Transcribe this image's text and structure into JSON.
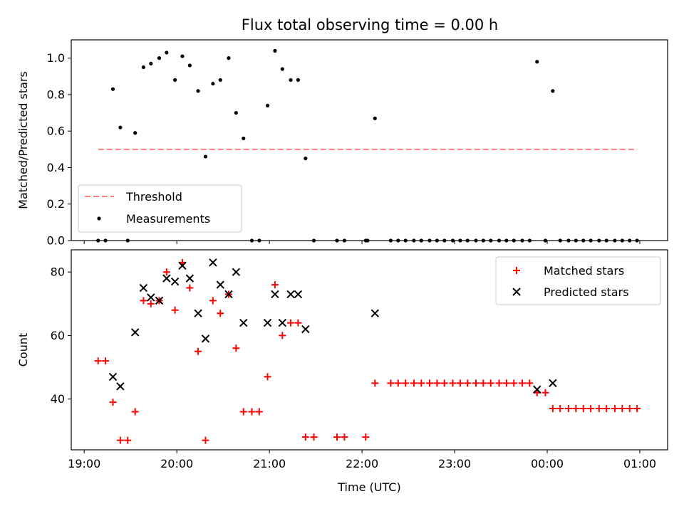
{
  "chart_data": [
    {
      "type": "scatter",
      "title": "Flux total observing time = 0.00 h",
      "xlabel": "",
      "ylabel": "Matched/Predicted stars",
      "ylim": [
        0.0,
        1.1
      ],
      "xlim_hours": [
        18.86,
        25.3
      ],
      "yticks": [
        {
          "v": 0.0,
          "label": "0.0"
        },
        {
          "v": 0.2,
          "label": "0.2"
        },
        {
          "v": 0.4,
          "label": "0.4"
        },
        {
          "v": 0.6,
          "label": "0.6"
        },
        {
          "v": 0.8,
          "label": "0.8"
        },
        {
          "v": 1.0,
          "label": "1.0"
        }
      ],
      "xticks": [
        {
          "v": 19,
          "label": ""
        },
        {
          "v": 20,
          "label": ""
        },
        {
          "v": 21,
          "label": ""
        },
        {
          "v": 22,
          "label": ""
        },
        {
          "v": 23,
          "label": ""
        },
        {
          "v": 24,
          "label": ""
        },
        {
          "v": 25,
          "label": ""
        }
      ],
      "legend": {
        "position": "lower-left",
        "entries": [
          "Threshold",
          "Measurements"
        ]
      },
      "threshold": {
        "name": "Threshold",
        "value": 0.5,
        "x_start": 19.15,
        "x_end": 24.97,
        "color": "#ff7f7f"
      },
      "series": [
        {
          "name": "Measurements",
          "color": "#000000",
          "points": [
            [
              19.15,
              0.0
            ],
            [
              19.23,
              0.0
            ],
            [
              19.31,
              0.83
            ],
            [
              19.39,
              0.62
            ],
            [
              19.47,
              0.0
            ],
            [
              19.55,
              0.59
            ],
            [
              19.64,
              0.95
            ],
            [
              19.72,
              0.97
            ],
            [
              19.81,
              1.0
            ],
            [
              19.89,
              1.03
            ],
            [
              19.98,
              0.88
            ],
            [
              20.06,
              1.01
            ],
            [
              20.14,
              0.96
            ],
            [
              20.23,
              0.82
            ],
            [
              20.31,
              0.46
            ],
            [
              20.39,
              0.86
            ],
            [
              20.47,
              0.88
            ],
            [
              20.56,
              1.0
            ],
            [
              20.64,
              0.7
            ],
            [
              20.72,
              0.56
            ],
            [
              20.81,
              0.0
            ],
            [
              20.89,
              0.0
            ],
            [
              20.98,
              0.74
            ],
            [
              21.06,
              1.04
            ],
            [
              21.14,
              0.94
            ],
            [
              21.23,
              0.88
            ],
            [
              21.31,
              0.88
            ],
            [
              21.39,
              0.45
            ],
            [
              21.48,
              0.0
            ],
            [
              21.73,
              0.0
            ],
            [
              21.81,
              0.0
            ],
            [
              22.04,
              0.0
            ],
            [
              22.06,
              0.0
            ],
            [
              22.14,
              0.67
            ],
            [
              22.31,
              0.0
            ],
            [
              22.39,
              0.0
            ],
            [
              22.47,
              0.0
            ],
            [
              22.56,
              0.0
            ],
            [
              22.64,
              0.0
            ],
            [
              22.73,
              0.0
            ],
            [
              22.81,
              0.0
            ],
            [
              22.89,
              0.0
            ],
            [
              22.98,
              0.0
            ],
            [
              23.06,
              0.0
            ],
            [
              23.14,
              0.0
            ],
            [
              23.23,
              0.0
            ],
            [
              23.31,
              0.0
            ],
            [
              23.39,
              0.0
            ],
            [
              23.48,
              0.0
            ],
            [
              23.56,
              0.0
            ],
            [
              23.64,
              0.0
            ],
            [
              23.73,
              0.0
            ],
            [
              23.81,
              0.0
            ],
            [
              23.89,
              0.98
            ],
            [
              23.98,
              0.0
            ],
            [
              24.06,
              0.82
            ],
            [
              24.14,
              0.0
            ],
            [
              24.23,
              0.0
            ],
            [
              24.31,
              0.0
            ],
            [
              24.39,
              0.0
            ],
            [
              24.47,
              0.0
            ],
            [
              24.56,
              0.0
            ],
            [
              24.64,
              0.0
            ],
            [
              24.73,
              0.0
            ],
            [
              24.81,
              0.0
            ],
            [
              24.89,
              0.0
            ],
            [
              24.97,
              0.0
            ]
          ]
        }
      ]
    },
    {
      "type": "scatter",
      "title": "",
      "xlabel": "Time (UTC)",
      "ylabel": "Count",
      "ylim": [
        24,
        87
      ],
      "xlim_hours": [
        18.86,
        25.3
      ],
      "yticks": [
        {
          "v": 40,
          "label": "40"
        },
        {
          "v": 60,
          "label": "60"
        },
        {
          "v": 80,
          "label": "80"
        }
      ],
      "xticks": [
        {
          "v": 19,
          "label": "19:00"
        },
        {
          "v": 20,
          "label": "20:00"
        },
        {
          "v": 21,
          "label": "21:00"
        },
        {
          "v": 22,
          "label": "22:00"
        },
        {
          "v": 23,
          "label": "23:00"
        },
        {
          "v": 24,
          "label": "00:00"
        },
        {
          "v": 25,
          "label": "01:00"
        }
      ],
      "legend": {
        "position": "upper-right",
        "entries": [
          "Matched stars",
          "Predicted stars"
        ]
      },
      "series": [
        {
          "name": "Matched stars",
          "marker": "plus",
          "color": "#ff0000",
          "points": [
            [
              19.15,
              52
            ],
            [
              19.23,
              52
            ],
            [
              19.31,
              39
            ],
            [
              19.39,
              27
            ],
            [
              19.47,
              27
            ],
            [
              19.55,
              36
            ],
            [
              19.64,
              71
            ],
            [
              19.72,
              70
            ],
            [
              19.81,
              71
            ],
            [
              19.89,
              80
            ],
            [
              19.98,
              68
            ],
            [
              20.06,
              83
            ],
            [
              20.14,
              75
            ],
            [
              20.23,
              55
            ],
            [
              20.31,
              27
            ],
            [
              20.39,
              71
            ],
            [
              20.47,
              67
            ],
            [
              20.56,
              73
            ],
            [
              20.64,
              56
            ],
            [
              20.72,
              36
            ],
            [
              20.81,
              36
            ],
            [
              20.89,
              36
            ],
            [
              20.98,
              47
            ],
            [
              21.06,
              76
            ],
            [
              21.14,
              60
            ],
            [
              21.23,
              64
            ],
            [
              21.31,
              64
            ],
            [
              21.39,
              28
            ],
            [
              21.48,
              28
            ],
            [
              21.73,
              28
            ],
            [
              21.81,
              28
            ],
            [
              22.04,
              28
            ],
            [
              22.14,
              45
            ],
            [
              22.31,
              45
            ],
            [
              22.39,
              45
            ],
            [
              22.47,
              45
            ],
            [
              22.56,
              45
            ],
            [
              22.64,
              45
            ],
            [
              22.73,
              45
            ],
            [
              22.81,
              45
            ],
            [
              22.89,
              45
            ],
            [
              22.98,
              45
            ],
            [
              23.06,
              45
            ],
            [
              23.14,
              45
            ],
            [
              23.23,
              45
            ],
            [
              23.31,
              45
            ],
            [
              23.39,
              45
            ],
            [
              23.48,
              45
            ],
            [
              23.56,
              45
            ],
            [
              23.64,
              45
            ],
            [
              23.73,
              45
            ],
            [
              23.81,
              45
            ],
            [
              23.89,
              42
            ],
            [
              23.98,
              42
            ],
            [
              24.06,
              37
            ],
            [
              24.14,
              37
            ],
            [
              24.23,
              37
            ],
            [
              24.31,
              37
            ],
            [
              24.39,
              37
            ],
            [
              24.47,
              37
            ],
            [
              24.56,
              37
            ],
            [
              24.64,
              37
            ],
            [
              24.73,
              37
            ],
            [
              24.81,
              37
            ],
            [
              24.89,
              37
            ],
            [
              24.97,
              37
            ]
          ]
        },
        {
          "name": "Predicted stars",
          "marker": "x",
          "color": "#000000",
          "points": [
            [
              19.31,
              47
            ],
            [
              19.39,
              44
            ],
            [
              19.55,
              61
            ],
            [
              19.64,
              75
            ],
            [
              19.72,
              72
            ],
            [
              19.81,
              71
            ],
            [
              19.89,
              78
            ],
            [
              19.98,
              77
            ],
            [
              20.06,
              82
            ],
            [
              20.14,
              78
            ],
            [
              20.23,
              67
            ],
            [
              20.31,
              59
            ],
            [
              20.39,
              83
            ],
            [
              20.47,
              76
            ],
            [
              20.56,
              73
            ],
            [
              20.64,
              80
            ],
            [
              20.72,
              64
            ],
            [
              20.98,
              64
            ],
            [
              21.06,
              73
            ],
            [
              21.14,
              64
            ],
            [
              21.23,
              73
            ],
            [
              21.31,
              73
            ],
            [
              21.39,
              62
            ],
            [
              22.14,
              67
            ],
            [
              23.89,
              43
            ],
            [
              24.06,
              45
            ]
          ]
        }
      ]
    }
  ]
}
